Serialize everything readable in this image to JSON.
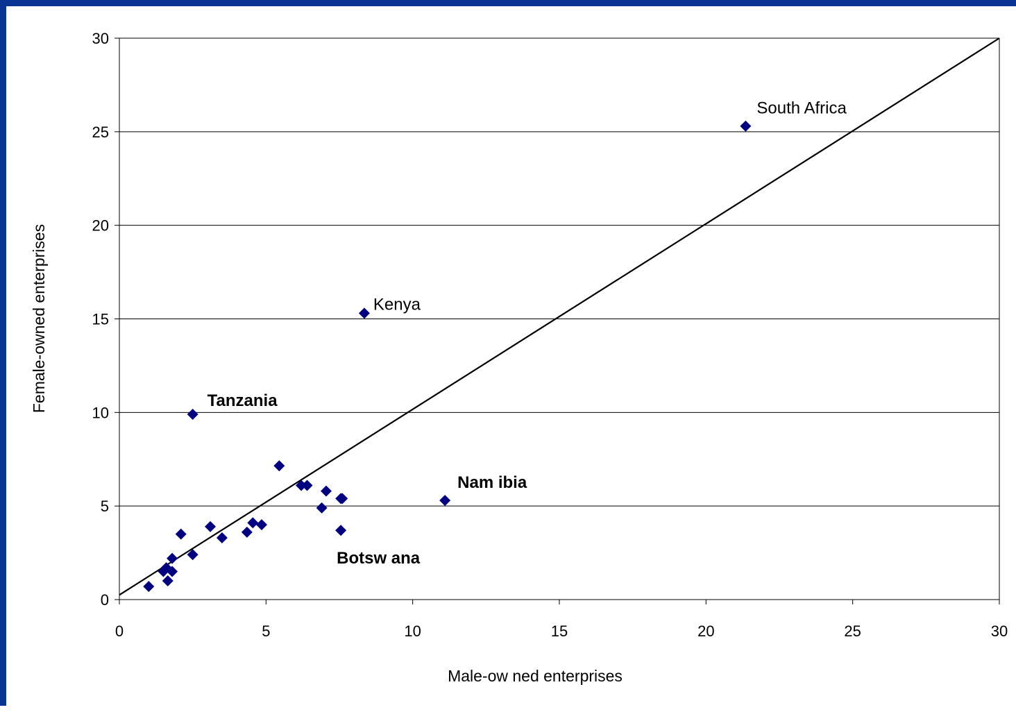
{
  "chart_data": {
    "type": "scatter",
    "title": "",
    "xlabel": "Male-ow ned enterprises",
    "ylabel": "Female-owned enterprises",
    "xlim": [
      0,
      30
    ],
    "ylim": [
      0,
      30
    ],
    "xticks": [
      "0",
      "5",
      "10",
      "15",
      "20",
      "25",
      "30"
    ],
    "yticks": [
      "0",
      "5",
      "10",
      "15",
      "20",
      "25",
      "30"
    ],
    "grid": "horizontal",
    "legend": "none",
    "marker": "diamond",
    "marker_color": "#000080",
    "line_color": "#000000",
    "series": [
      {
        "points": [
          {
            "x": 1.0,
            "y": 0.7
          },
          {
            "x": 1.5,
            "y": 1.5
          },
          {
            "x": 1.6,
            "y": 1.7
          },
          {
            "x": 1.65,
            "y": 1.0
          },
          {
            "x": 1.8,
            "y": 1.5
          },
          {
            "x": 1.8,
            "y": 2.2
          },
          {
            "x": 2.1,
            "y": 3.5
          },
          {
            "x": 2.5,
            "y": 2.4
          },
          {
            "x": 2.5,
            "y": 9.9
          },
          {
            "x": 3.1,
            "y": 3.9
          },
          {
            "x": 3.5,
            "y": 3.3
          },
          {
            "x": 4.35,
            "y": 3.6
          },
          {
            "x": 4.55,
            "y": 4.1
          },
          {
            "x": 4.85,
            "y": 4.0
          },
          {
            "x": 5.45,
            "y": 7.15
          },
          {
            "x": 6.2,
            "y": 6.1
          },
          {
            "x": 6.4,
            "y": 6.1
          },
          {
            "x": 6.9,
            "y": 4.9
          },
          {
            "x": 7.05,
            "y": 5.8
          },
          {
            "x": 7.55,
            "y": 5.4
          },
          {
            "x": 7.6,
            "y": 5.4
          },
          {
            "x": 7.55,
            "y": 3.7
          },
          {
            "x": 8.35,
            "y": 15.3
          },
          {
            "x": 11.1,
            "y": 5.3
          },
          {
            "x": 21.35,
            "y": 25.3
          }
        ]
      }
    ],
    "reference_line": {
      "x": [
        0,
        30
      ],
      "y": [
        0.25,
        30
      ]
    },
    "annotations": [
      {
        "text": "South Africa",
        "x": 21.35,
        "y": 25.3,
        "bold": false
      },
      {
        "text": "Kenya",
        "x": 8.35,
        "y": 15.3,
        "bold": false
      },
      {
        "text": "Tanzania",
        "x": 2.5,
        "y": 9.9,
        "bold": true
      },
      {
        "text": "Nam ibia",
        "x": 11.1,
        "y": 5.3,
        "bold": true
      },
      {
        "text": "Botsw ana",
        "x": 7.55,
        "y": 3.7,
        "bold": true
      }
    ]
  }
}
